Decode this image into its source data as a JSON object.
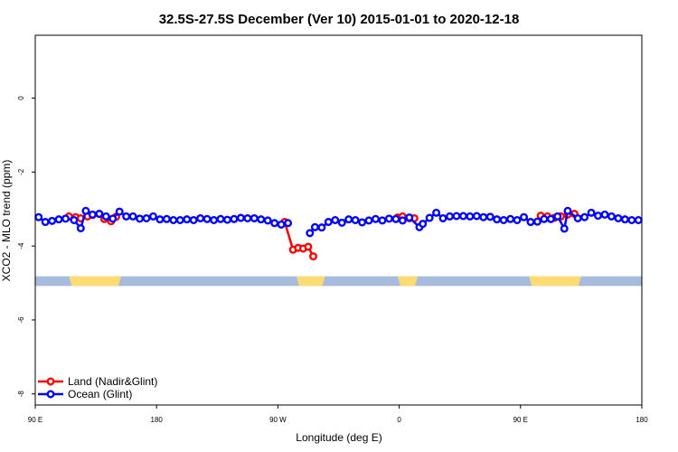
{
  "chart_data": {
    "type": "line",
    "title": "32.5S-27.5S December (Ver 10)   2015-01-01 to 2020-12-18",
    "xlabel": "Longitude (deg E)",
    "ylabel": "XCO2 - MLO trend (ppm)",
    "xlim": [
      90,
      450
    ],
    "ylim": [
      -8.3,
      1.7
    ],
    "x_ticks": [
      {
        "value": 90,
        "label": "90 E"
      },
      {
        "value": 162,
        "label": "180"
      },
      {
        "value": 234,
        "label": "90 W"
      },
      {
        "value": 306,
        "label": "0"
      },
      {
        "value": 378,
        "label": "90 E"
      },
      {
        "value": 450,
        "label": "180"
      }
    ],
    "y_ticks": [
      {
        "value": 0,
        "label": "0"
      },
      {
        "value": -2,
        "label": "-2"
      },
      {
        "value": -4,
        "label": "-4"
      },
      {
        "value": -6,
        "label": "-6"
      },
      {
        "value": -8,
        "label": "-8"
      }
    ],
    "land_band": {
      "y": [
        -5.08,
        -4.82
      ],
      "ocean_color": "#a9bbdc",
      "land_color": "#ffdb73",
      "land_ranges": [
        [
          110,
          141
        ],
        [
          245,
          262
        ],
        [
          305,
          317
        ],
        [
          383,
          414
        ]
      ]
    },
    "series": [
      {
        "name": "Land (Nadir&Glint)",
        "color": "#ff0000",
        "x": [
          110,
          114,
          117,
          121,
          124,
          128,
          131,
          135,
          138,
          238,
          243,
          246,
          249,
          252,
          255,
          305,
          308,
          312,
          315,
          390,
          394,
          398,
          402,
          406,
          410
        ],
        "y": [
          -3.2,
          -3.22,
          -3.25,
          -3.2,
          -3.16,
          -3.13,
          -3.27,
          -3.33,
          -3.21,
          -3.35,
          -4.1,
          -4.05,
          -4.07,
          -4.02,
          -4.28,
          -3.23,
          -3.2,
          -3.25,
          -3.25,
          -3.18,
          -3.2,
          -3.24,
          -3.2,
          -3.15,
          -3.13
        ]
      },
      {
        "name": "Ocean (Glint)",
        "color": "#0000ff",
        "x": [
          92,
          96,
          100,
          104,
          108,
          113,
          117,
          120,
          124,
          128,
          132,
          136,
          140,
          144,
          148,
          152,
          156,
          160,
          164,
          168,
          172,
          176,
          180,
          184,
          188,
          192,
          196,
          200,
          204,
          208,
          212,
          216,
          220,
          224,
          228,
          232,
          236,
          240,
          253,
          256,
          260,
          264,
          268,
          272,
          276,
          280,
          284,
          288,
          292,
          296,
          300,
          304,
          308,
          312,
          318,
          320,
          324,
          328,
          332,
          336,
          340,
          344,
          348,
          352,
          356,
          360,
          364,
          368,
          372,
          376,
          380,
          384,
          388,
          392,
          396,
          400,
          404,
          406,
          412,
          416,
          420,
          424,
          428,
          432,
          436,
          440,
          444,
          448
        ],
        "y": [
          -3.22,
          -3.35,
          -3.32,
          -3.28,
          -3.26,
          -3.3,
          -3.52,
          -3.05,
          -3.15,
          -3.13,
          -3.2,
          -3.26,
          -3.07,
          -3.2,
          -3.2,
          -3.26,
          -3.25,
          -3.2,
          -3.28,
          -3.27,
          -3.3,
          -3.3,
          -3.28,
          -3.3,
          -3.25,
          -3.27,
          -3.3,
          -3.27,
          -3.29,
          -3.27,
          -3.24,
          -3.25,
          -3.25,
          -3.28,
          -3.31,
          -3.38,
          -3.42,
          -3.38,
          -3.65,
          -3.49,
          -3.5,
          -3.35,
          -3.3,
          -3.37,
          -3.28,
          -3.3,
          -3.36,
          -3.31,
          -3.27,
          -3.31,
          -3.26,
          -3.27,
          -3.31,
          -3.23,
          -3.49,
          -3.4,
          -3.24,
          -3.1,
          -3.25,
          -3.2,
          -3.19,
          -3.19,
          -3.2,
          -3.19,
          -3.22,
          -3.21,
          -3.28,
          -3.3,
          -3.27,
          -3.3,
          -3.22,
          -3.35,
          -3.34,
          -3.27,
          -3.27,
          -3.2,
          -3.53,
          -3.05,
          -3.25,
          -3.22,
          -3.1,
          -3.18,
          -3.15,
          -3.2,
          -3.25,
          -3.28,
          -3.3,
          -3.3
        ]
      }
    ],
    "legend": "bottom-left",
    "grid": false
  }
}
